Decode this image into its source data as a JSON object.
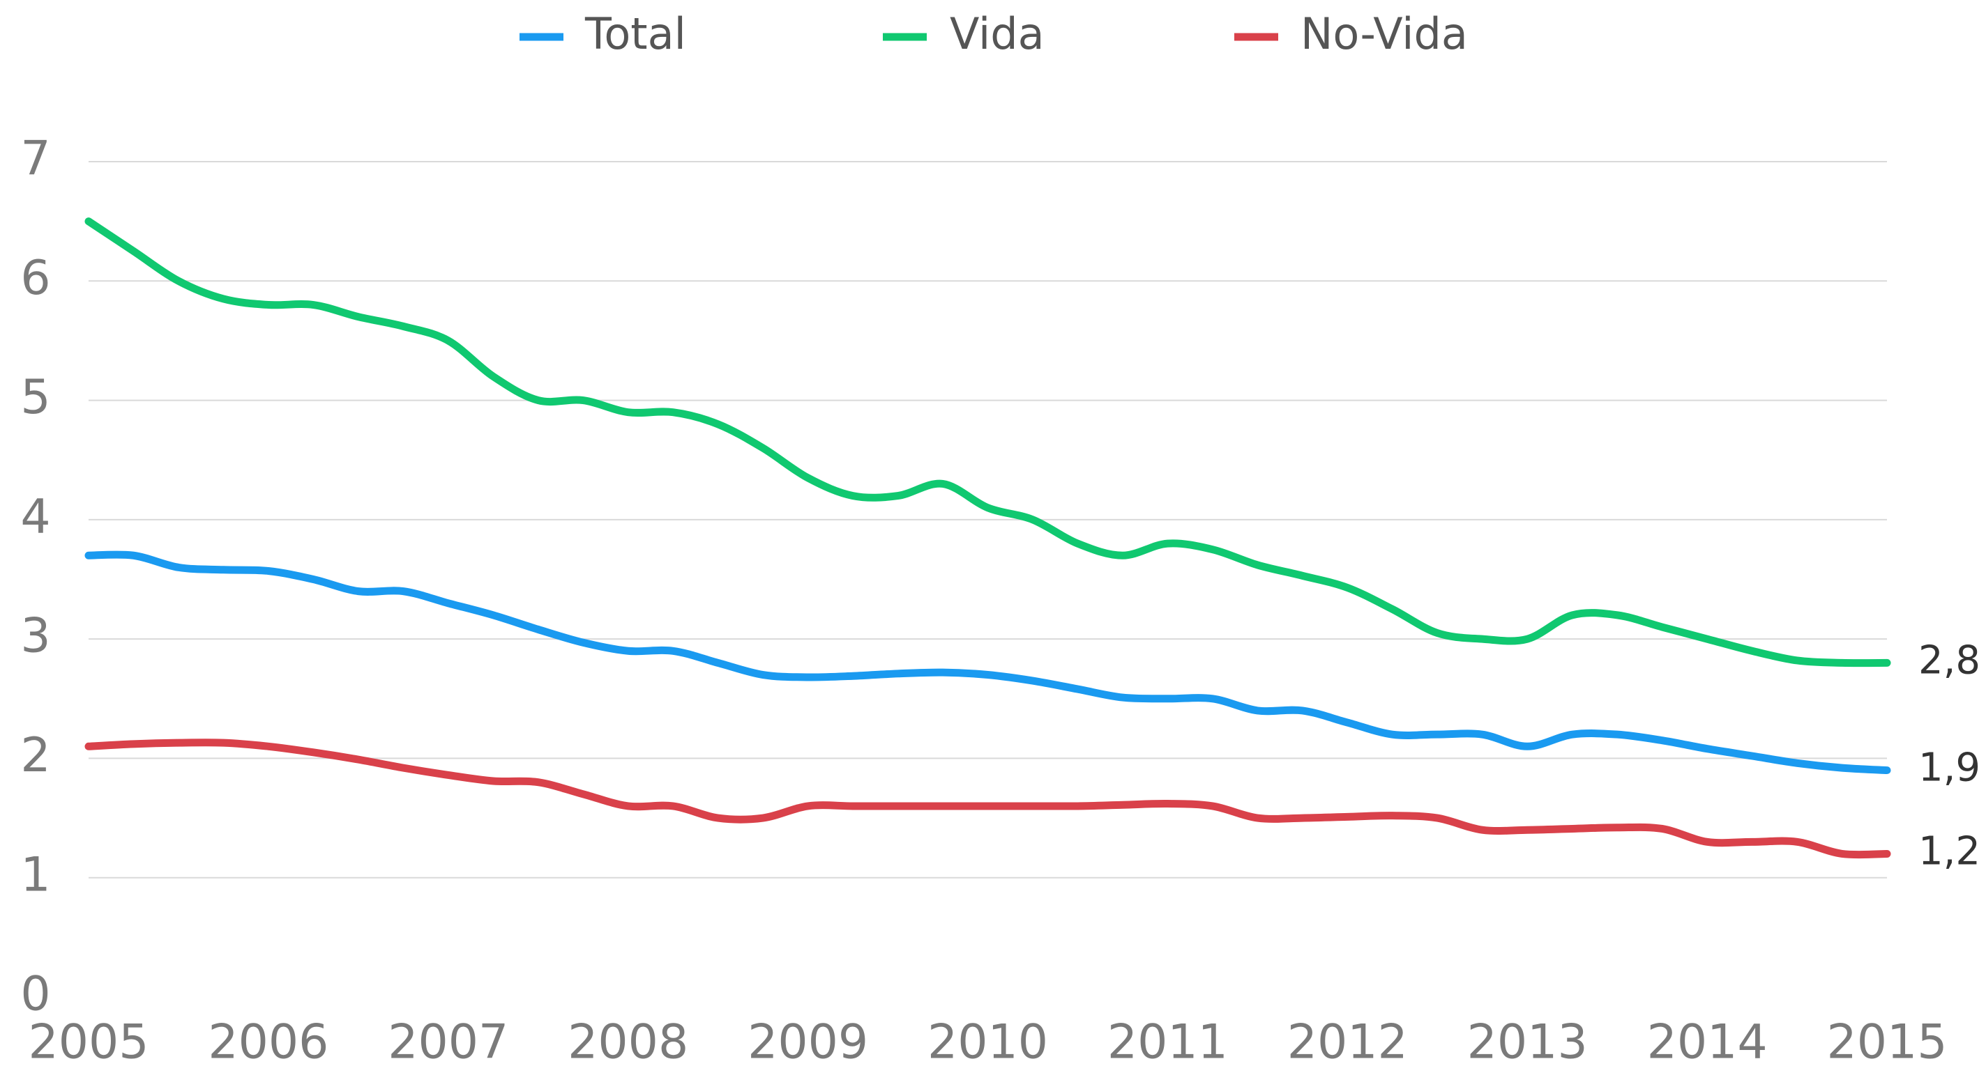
{
  "chart_data": {
    "type": "line",
    "x": [
      2005,
      2005.25,
      2005.5,
      2005.75,
      2006,
      2006.25,
      2006.5,
      2006.75,
      2007,
      2007.25,
      2007.5,
      2007.75,
      2008,
      2008.25,
      2008.5,
      2008.75,
      2009,
      2009.25,
      2009.5,
      2009.75,
      2010,
      2010.25,
      2010.5,
      2010.75,
      2011,
      2011.25,
      2011.5,
      2011.75,
      2012,
      2012.25,
      2012.5,
      2012.75,
      2013,
      2013.25,
      2013.5,
      2013.75,
      2014,
      2014.25,
      2014.5,
      2014.75,
      2015
    ],
    "series": [
      {
        "name": "Total",
        "color": "#1a9af0",
        "values": [
          3.7,
          3.7,
          3.6,
          3.58,
          3.57,
          3.5,
          3.4,
          3.4,
          3.3,
          3.2,
          3.08,
          2.97,
          2.9,
          2.9,
          2.8,
          2.7,
          2.68,
          2.69,
          2.71,
          2.72,
          2.7,
          2.65,
          2.58,
          2.51,
          2.5,
          2.5,
          2.4,
          2.4,
          2.3,
          2.2,
          2.2,
          2.2,
          2.1,
          2.2,
          2.2,
          2.15,
          2.08,
          2.02,
          1.96,
          1.92,
          1.9
        ],
        "value_labels": [
          null,
          null,
          null,
          null,
          null,
          null,
          null,
          null,
          null,
          null,
          null,
          null,
          null,
          null,
          null,
          null,
          null,
          null,
          null,
          null,
          null,
          null,
          null,
          null,
          null,
          null,
          null,
          null,
          null,
          null,
          null,
          null,
          null,
          null,
          null,
          null,
          null,
          null,
          null,
          null,
          "1,9"
        ]
      },
      {
        "name": "Vida",
        "color": "#10c870",
        "values": [
          6.5,
          6.25,
          6.0,
          5.85,
          5.8,
          5.8,
          5.7,
          5.62,
          5.5,
          5.2,
          5.0,
          5.0,
          4.9,
          4.9,
          4.8,
          4.6,
          4.35,
          4.2,
          4.2,
          4.3,
          4.1,
          4.0,
          3.8,
          3.7,
          3.8,
          3.75,
          3.62,
          3.53,
          3.43,
          3.25,
          3.05,
          3.0,
          3.0,
          3.2,
          3.2,
          3.1,
          3.0,
          2.9,
          2.82,
          2.8,
          2.8
        ],
        "value_labels": [
          null,
          null,
          null,
          null,
          null,
          null,
          null,
          null,
          null,
          null,
          null,
          null,
          null,
          null,
          null,
          null,
          null,
          null,
          null,
          null,
          null,
          null,
          null,
          null,
          null,
          null,
          null,
          null,
          null,
          null,
          null,
          null,
          null,
          null,
          null,
          null,
          null,
          null,
          null,
          null,
          "2,8"
        ]
      },
      {
        "name": "No-Vida",
        "color": "#d9414a",
        "values": [
          2.1,
          2.12,
          2.13,
          2.13,
          2.1,
          2.05,
          1.99,
          1.92,
          1.86,
          1.81,
          1.8,
          1.7,
          1.6,
          1.6,
          1.5,
          1.5,
          1.6,
          1.6,
          1.6,
          1.6,
          1.6,
          1.6,
          1.6,
          1.61,
          1.62,
          1.6,
          1.5,
          1.5,
          1.51,
          1.52,
          1.5,
          1.4,
          1.4,
          1.41,
          1.42,
          1.41,
          1.3,
          1.3,
          1.3,
          1.2,
          1.2
        ],
        "value_labels": [
          null,
          null,
          null,
          null,
          null,
          null,
          null,
          null,
          null,
          null,
          null,
          null,
          null,
          null,
          null,
          null,
          null,
          null,
          null,
          null,
          null,
          null,
          null,
          null,
          null,
          null,
          null,
          null,
          null,
          null,
          null,
          null,
          null,
          null,
          null,
          null,
          null,
          null,
          null,
          null,
          "1,2"
        ]
      }
    ],
    "xlim": [
      2005,
      2015
    ],
    "xticks": [
      2005,
      2006,
      2007,
      2008,
      2009,
      2010,
      2011,
      2012,
      2013,
      2014,
      2015
    ],
    "ylim": [
      0,
      7
    ],
    "yticks": [
      0,
      1,
      2,
      3,
      4,
      5,
      6,
      7
    ],
    "grid": true,
    "legend": "top"
  }
}
